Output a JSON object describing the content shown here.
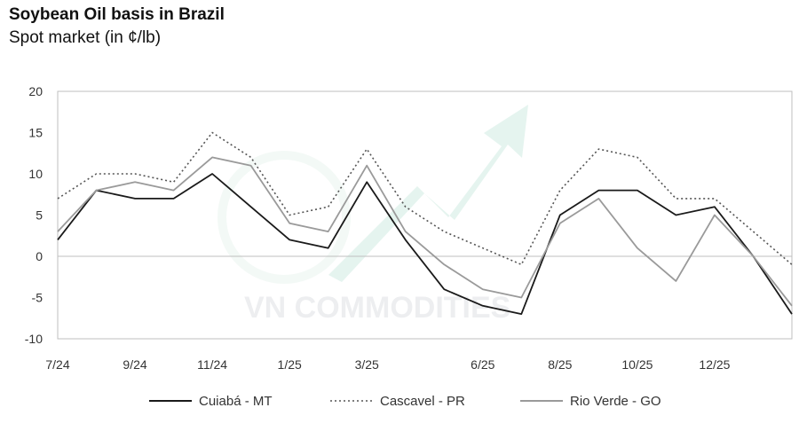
{
  "chart_data": {
    "type": "line",
    "title": "Soybean Oil basis in Brazil",
    "subtitle": "Spot market (in ¢/lb)",
    "xlabel": "",
    "ylabel": "",
    "ylim": [
      -10,
      20
    ],
    "yticks": [
      20,
      15,
      10,
      5,
      0,
      -5,
      -10
    ],
    "xticks": [
      "7/24",
      "9/24",
      "11/24",
      "1/25",
      "3/25",
      "6/25",
      "8/25",
      "10/25",
      "12/25"
    ],
    "grid": false,
    "zero_line": true,
    "legend_position": "bottom",
    "x": [
      "7/24",
      "8/24",
      "9/24",
      "10/24",
      "11/24",
      "12/24",
      "1/25",
      "2/25",
      "3/25",
      "4/25",
      "5/25",
      "6/25",
      "7/25",
      "8/25",
      "9/25",
      "10/25",
      "11/25",
      "12/25",
      "1/26",
      "2/26"
    ],
    "series": [
      {
        "name": "Cuiabá - MT",
        "style": "solid",
        "color": "#1a1a1a",
        "values": [
          2,
          8,
          7,
          7,
          10,
          6,
          2,
          1,
          9,
          2,
          -4,
          -6,
          -7,
          5,
          8,
          8,
          5,
          6,
          0,
          -7
        ]
      },
      {
        "name": "Cascavel - PR",
        "style": "dotted",
        "color": "#555555",
        "values": [
          7,
          10,
          10,
          9,
          15,
          12,
          5,
          6,
          13,
          6,
          3,
          1,
          -1,
          8,
          13,
          12,
          7,
          7,
          3,
          -1
        ]
      },
      {
        "name": "Rio Verde - GO",
        "style": "solid",
        "color": "#9a9a9a",
        "values": [
          3,
          8,
          9,
          8,
          12,
          11,
          4,
          3,
          11,
          3,
          -1,
          -4,
          -5,
          4,
          7,
          1,
          -3,
          5,
          0,
          -6
        ]
      }
    ]
  },
  "watermark": {
    "text": "VN COMMODITIES"
  }
}
